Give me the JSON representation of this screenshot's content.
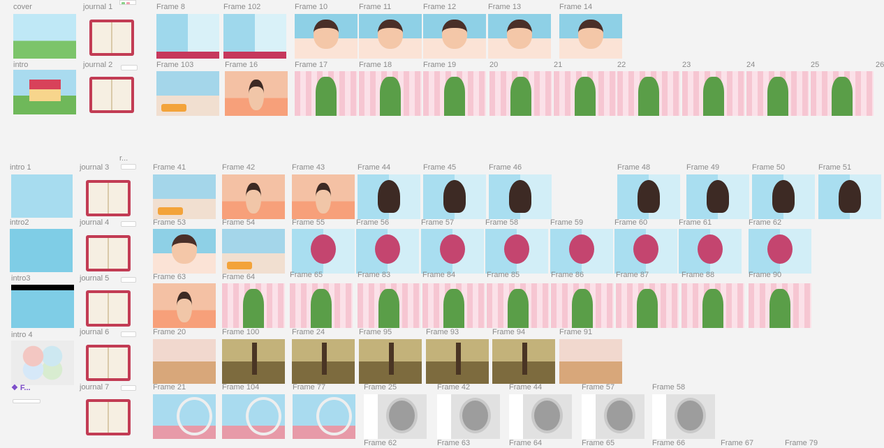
{
  "canvas": {
    "labels": [
      "cover",
      "intro",
      "journal 1",
      "journal 2",
      "Frame 8",
      "Frame 102",
      "Frame 10",
      "Frame 11",
      "Frame 12",
      "Frame 13",
      "Frame 14",
      "Frame 103",
      "Frame 16",
      "Frame 17",
      "Frame 18",
      "Frame 19",
      "20",
      "21",
      "22",
      "23",
      "24",
      "25",
      "26",
      "intro 1",
      "journal 3",
      "r...",
      "Frame 41",
      "Frame 42",
      "Frame 43",
      "Frame 44",
      "Frame 45",
      "Frame 46",
      "Frame 48",
      "Frame 49",
      "Frame 50",
      "Frame 51",
      "intro2",
      "journal 4",
      "Frame 53",
      "Frame 54",
      "Frame 55",
      "Frame 56",
      "Frame 57",
      "Frame 58",
      "Frame 59",
      "Frame 60",
      "Frame 61",
      "Frame 62",
      "intro3",
      "journal 5",
      "Frame 63",
      "Frame 64",
      "Frame 65",
      "Frame 83",
      "Frame 84",
      "Frame 85",
      "Frame 86",
      "Frame 87",
      "Frame 88",
      "Frame 90",
      "intro 4",
      "journal 6",
      "Frame 20",
      "Frame 100",
      "Frame 24",
      "Frame 95",
      "Frame 93",
      "Frame 94",
      "Frame 91",
      "❖ F...",
      "journal 7",
      "Frame 21",
      "Frame 104",
      "Frame 77",
      "Frame 25",
      "Frame 42",
      "Frame 44",
      "Frame 57",
      "Frame 58",
      "Frame 62",
      "Frame 63",
      "Frame 64",
      "Frame 65",
      "Frame 66",
      "Frame 67",
      "Frame 79"
    ]
  },
  "colors": {
    "canvas_bg": "#f3f3f3",
    "label": "#8a8a8a",
    "component_label": "#7b4cc9"
  }
}
